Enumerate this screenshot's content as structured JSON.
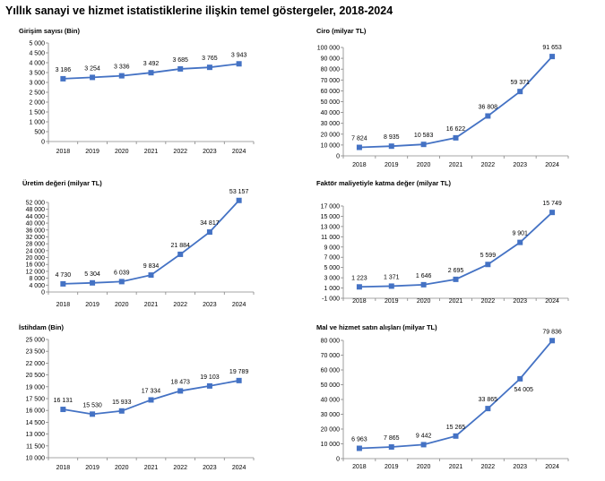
{
  "title": "Yıllık sanayi ve hizmet istatistiklerine ilişkin temel göstergeler,  2018-2024",
  "colors": {
    "series": "#4472C4"
  },
  "chart_data": [
    {
      "type": "line",
      "title": "Girişim sayısı (Bin)",
      "categories": [
        "2018",
        "2019",
        "2020",
        "2021",
        "2022",
        "2023",
        "2024"
      ],
      "values": [
        3186,
        3254,
        3336,
        3492,
        3685,
        3765,
        3943
      ],
      "value_labels": [
        "3 186",
        "3 254",
        "3 336",
        "3 492",
        "3 685",
        "3 765",
        "3 943"
      ],
      "ylim": [
        0,
        5000
      ],
      "yticks": [
        0,
        500,
        1000,
        1500,
        2000,
        2500,
        3000,
        3500,
        4000,
        4500,
        5000
      ],
      "ytick_labels": [
        "0",
        "500",
        "1 000",
        "1 500",
        "2 000",
        "2 500",
        "3 000",
        "3 500",
        "4 000",
        "4 500",
        "5 000"
      ],
      "grid": false,
      "legend": "none"
    },
    {
      "type": "line",
      "title": "Ciro (milyar TL)",
      "categories": [
        "2018",
        "2019",
        "2020",
        "2021",
        "2022",
        "2023",
        "2024"
      ],
      "values": [
        7824,
        8935,
        10583,
        16622,
        36808,
        59371,
        91653
      ],
      "value_labels": [
        "7 824",
        "8 935",
        "10 583",
        "16 622",
        "36 808",
        "59 371",
        "91 653"
      ],
      "ylim": [
        0,
        100000
      ],
      "yticks": [
        0,
        10000,
        20000,
        30000,
        40000,
        50000,
        60000,
        70000,
        80000,
        90000,
        100000
      ],
      "ytick_labels": [
        "0",
        "10 000",
        "20 000",
        "30 000",
        "40 000",
        "50 000",
        "60 000",
        "70 000",
        "80 000",
        "90 000",
        "100 000"
      ],
      "grid": false,
      "legend": "none"
    },
    {
      "type": "line",
      "title": "Üretim değeri (milyar TL)",
      "categories": [
        "2018",
        "2019",
        "2020",
        "2021",
        "2022",
        "2023",
        "2024"
      ],
      "values": [
        4730,
        5304,
        6039,
        9834,
        21884,
        34817,
        53157
      ],
      "value_labels": [
        "4 730",
        "5 304",
        "6 039",
        "9 834",
        "21 884",
        "34 817",
        "53 157"
      ],
      "ylim": [
        0,
        52000
      ],
      "yticks": [
        0,
        4000,
        8000,
        12000,
        16000,
        20000,
        24000,
        28000,
        32000,
        36000,
        40000,
        44000,
        48000,
        52000
      ],
      "ytick_labels": [
        "0",
        "4 000",
        "8 000",
        "12 000",
        "16 000",
        "20 000",
        "24 000",
        "28 000",
        "32 000",
        "36 000",
        "40 000",
        "44 000",
        "48 000",
        "52 000"
      ],
      "grid": false,
      "legend": "none"
    },
    {
      "type": "line",
      "title": "Faktör maliyetiyle katma değer (milyar TL)",
      "categories": [
        "2018",
        "2019",
        "2020",
        "2021",
        "2022",
        "2023",
        "2024"
      ],
      "values": [
        1223,
        1371,
        1646,
        2695,
        5599,
        9901,
        15749
      ],
      "value_labels": [
        "1 223",
        "1 371",
        "1 646",
        "2 695",
        "5 599",
        "9 901",
        "15 749"
      ],
      "ylim": [
        -1000,
        17000
      ],
      "yticks": [
        -1000,
        1000,
        3000,
        5000,
        7000,
        9000,
        11000,
        13000,
        15000,
        17000
      ],
      "ytick_labels": [
        "-1 000",
        "1 000",
        "3 000",
        "5 000",
        "7 000",
        "9 000",
        "11 000",
        "13 000",
        "15 000",
        "17 000"
      ],
      "grid": false,
      "legend": "none"
    },
    {
      "type": "line",
      "title": "İstihdam (Bin)",
      "categories": [
        "2018",
        "2019",
        "2020",
        "2021",
        "2022",
        "2023",
        "2024"
      ],
      "values": [
        16131,
        15530,
        15933,
        17334,
        18473,
        19103,
        19789
      ],
      "value_labels": [
        "16 131",
        "15 530",
        "15 933",
        "17 334",
        "18 473",
        "19 103",
        "19 789"
      ],
      "ylim": [
        10000,
        25000
      ],
      "yticks": [
        10000,
        11500,
        13000,
        14500,
        16000,
        17500,
        19000,
        20500,
        22000,
        23500,
        25000
      ],
      "ytick_labels": [
        "10 000",
        "11 500",
        "13 000",
        "14 500",
        "16 000",
        "17 500",
        "19 000",
        "20 500",
        "22 000",
        "23 500",
        "25 000"
      ],
      "grid": false,
      "legend": "none"
    },
    {
      "type": "line",
      "title": "Mal ve hizmet satın alışları (milyar TL)",
      "categories": [
        "2018",
        "2019",
        "2020",
        "2021",
        "2022",
        "2023",
        "2024"
      ],
      "values": [
        6963,
        7865,
        9442,
        15265,
        33865,
        54005,
        79836
      ],
      "value_labels": [
        "6 963",
        "7 865",
        "9 442",
        "15 265",
        "33 865",
        "54 005",
        "79 836"
      ],
      "ylim": [
        0,
        80000
      ],
      "yticks": [
        0,
        10000,
        20000,
        30000,
        40000,
        50000,
        60000,
        70000,
        80000
      ],
      "ytick_labels": [
        "0",
        "10 000",
        "20 000",
        "30 000",
        "40 000",
        "50 000",
        "60 000",
        "70 000",
        "80 000"
      ],
      "grid": false,
      "legend": "none"
    }
  ]
}
